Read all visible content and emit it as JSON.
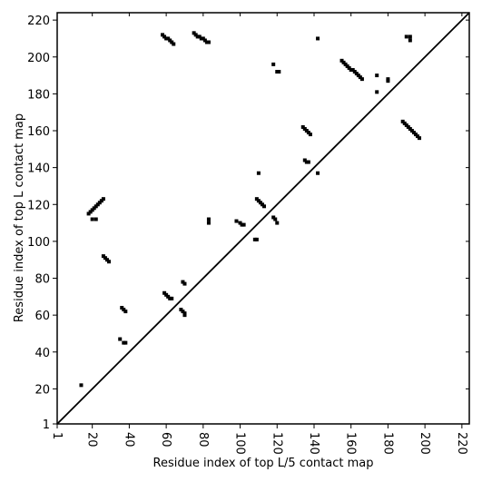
{
  "chart_data": {
    "type": "scatter",
    "xlabel": "Residue index of top L/5 contact map",
    "ylabel": "Residue index of top L contact map",
    "xlim": [
      1,
      224
    ],
    "ylim": [
      1,
      224
    ],
    "xticks": [
      1,
      20,
      40,
      60,
      80,
      100,
      120,
      140,
      160,
      180,
      200,
      220
    ],
    "yticks": [
      1,
      20,
      40,
      60,
      80,
      100,
      120,
      140,
      160,
      180,
      200,
      220
    ],
    "color": "#000000",
    "x": [
      14,
      18,
      19,
      20,
      21,
      22,
      23,
      24,
      25,
      26,
      20,
      22,
      26,
      27,
      28,
      29,
      35,
      37,
      38,
      36,
      37,
      38,
      59,
      60,
      61,
      62,
      63,
      68,
      69,
      70,
      70,
      69,
      70,
      58,
      59,
      60,
      61,
      62,
      63,
      64,
      75,
      76,
      77,
      78,
      79,
      80,
      81,
      82,
      83,
      83,
      83,
      98,
      100,
      101,
      102,
      108,
      109,
      109,
      110,
      111,
      112,
      113,
      110,
      118,
      119,
      120,
      118,
      120,
      121,
      134,
      135,
      136,
      137,
      138,
      135,
      136,
      137,
      142,
      142,
      155,
      156,
      157,
      158,
      159,
      160,
      161,
      162,
      163,
      164,
      165,
      166,
      174,
      174,
      180,
      180,
      188,
      189,
      190,
      191,
      192,
      193,
      194,
      195,
      196,
      197,
      190,
      192,
      192
    ],
    "y": [
      22,
      115,
      116,
      117,
      118,
      119,
      120,
      121,
      122,
      123,
      112,
      112,
      92,
      91,
      90,
      89,
      47,
      45,
      45,
      64,
      63,
      62,
      72,
      71,
      70,
      69,
      69,
      63,
      62,
      61,
      60,
      78,
      77,
      212,
      211,
      210,
      210,
      209,
      208,
      207,
      213,
      212,
      211,
      211,
      210,
      210,
      209,
      208,
      208,
      110,
      112,
      111,
      110,
      109,
      109,
      101,
      101,
      123,
      122,
      121,
      120,
      119,
      137,
      113,
      112,
      110,
      196,
      192,
      192,
      162,
      161,
      160,
      159,
      158,
      144,
      143,
      143,
      137,
      210,
      198,
      197,
      196,
      195,
      194,
      193,
      193,
      192,
      191,
      190,
      189,
      188,
      181,
      190,
      187,
      188,
      165,
      164,
      163,
      162,
      161,
      160,
      159,
      158,
      157,
      156,
      211,
      211,
      209
    ]
  }
}
